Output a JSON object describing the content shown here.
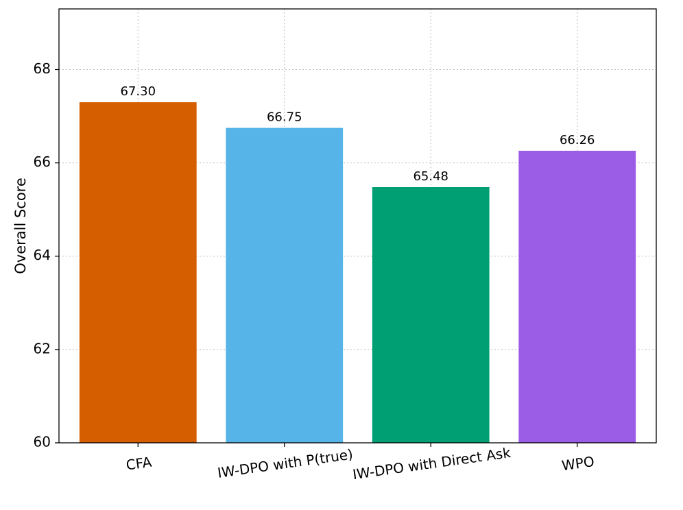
{
  "chart_data": {
    "type": "bar",
    "title": "",
    "xlabel": "",
    "ylabel": "Overall Score",
    "categories": [
      "CFA",
      "IW-DPO with P(true)",
      "IW-DPO with Direct Ask",
      "WPO"
    ],
    "values": [
      67.3,
      66.75,
      65.48,
      66.26
    ],
    "value_labels": [
      "67.30",
      "66.75",
      "65.48",
      "66.26"
    ],
    "bar_colors": [
      "#d55e00",
      "#56b4e9",
      "#009e73",
      "#9b5de5"
    ],
    "ylim": [
      60,
      69.3
    ],
    "yticks": [
      60,
      62,
      64,
      66,
      68
    ],
    "grid": true,
    "legend": "none",
    "xtick_rotation_deg": -8
  }
}
